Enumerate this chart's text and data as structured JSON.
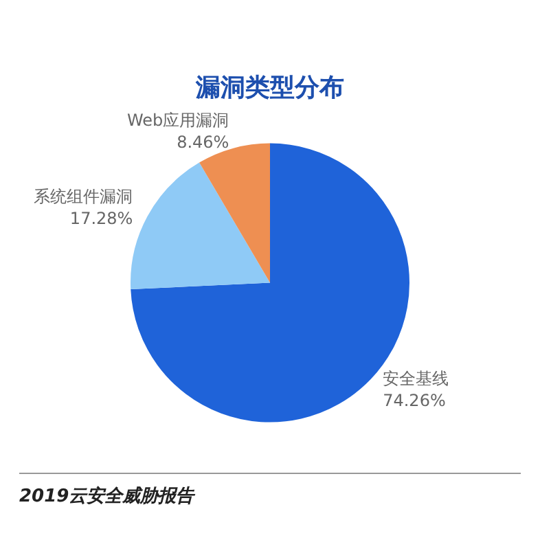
{
  "chart_data": {
    "type": "pie",
    "title": "漏洞类型分布",
    "categories": [
      "安全基线",
      "系统组件漏洞",
      "Web应用漏洞"
    ],
    "values": [
      74.26,
      17.28,
      8.46
    ],
    "value_labels": [
      "74.26%",
      "17.28%",
      "8.46%"
    ],
    "colors": [
      "#1f63d9",
      "#8fcaf6",
      "#ee8f52"
    ],
    "annotations": [
      "2019云安全威胁报告"
    ]
  }
}
